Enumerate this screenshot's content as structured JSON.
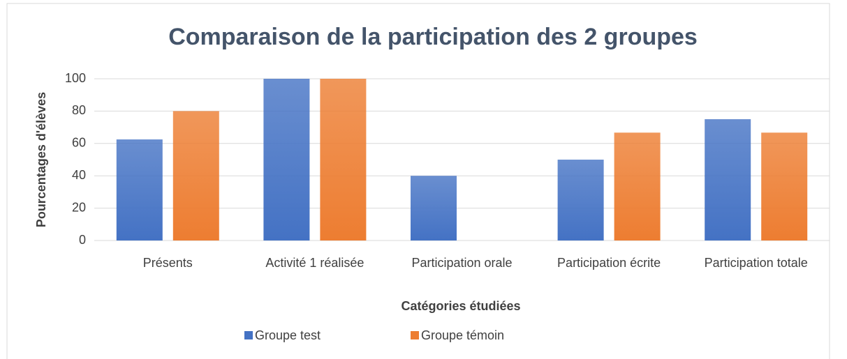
{
  "chart_data": {
    "type": "bar",
    "title": "Comparaison de la participation des 2 groupes",
    "x_label": "Catégories étudiées",
    "y_label": "Pourcentages d'élèves",
    "categories": [
      "Présents",
      "Activité 1 réalisée",
      "Participation orale",
      "Participation écrite",
      "Participation totale"
    ],
    "series": [
      {
        "name": "Groupe test",
        "color": "#4472c4",
        "values": [
          62.5,
          100,
          40,
          50,
          75
        ]
      },
      {
        "name": "Groupe témoin",
        "color": "#ed7d31",
        "values": [
          80,
          100,
          0,
          66.7,
          66.7
        ]
      }
    ],
    "ylim": [
      0,
      100
    ],
    "yticks": [
      0,
      20,
      40,
      60,
      80,
      100
    ],
    "grid": true,
    "legend": "bottom"
  }
}
